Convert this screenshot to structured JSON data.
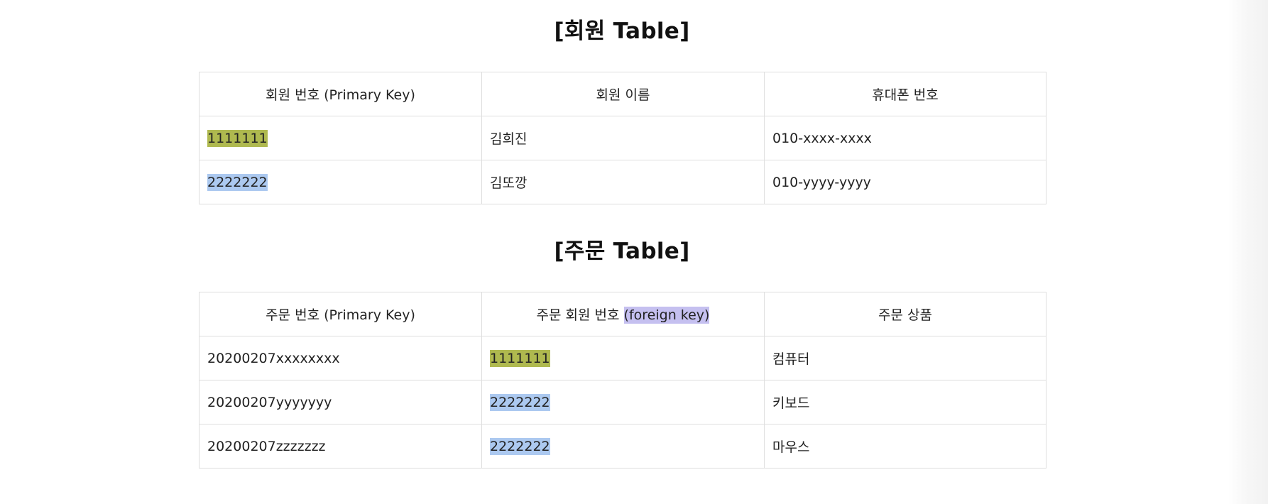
{
  "members_section": {
    "title": "[회원 Table]",
    "headers": [
      "회원 번호 (Primary Key)",
      "회원 이름",
      "휴대폰 번호"
    ],
    "rows": [
      {
        "member_id": "1111111",
        "member_id_highlight": "#afb94f",
        "name": "김희진",
        "phone": "010-xxxx-xxxx"
      },
      {
        "member_id": "2222222",
        "member_id_highlight": "#acc9f0",
        "name": "김또깡",
        "phone": "010-yyyy-yyyy"
      }
    ]
  },
  "orders_section": {
    "title": "[주문 Table]",
    "headers": {
      "order_id": "주문 번호 (Primary Key)",
      "member_ref_prefix": "주문 회원 번호 ",
      "member_ref_fk": "(foreign key)",
      "member_ref_fk_highlight": "#c5c0f0",
      "product": "주문 상품"
    },
    "rows": [
      {
        "order_id": "20200207xxxxxxxx",
        "member_id": "1111111",
        "member_id_highlight": "#afb94f",
        "product": "컴퓨터"
      },
      {
        "order_id": "20200207yyyyyyy",
        "member_id": "2222222",
        "member_id_highlight": "#acc9f0",
        "product": "키보드"
      },
      {
        "order_id": "20200207zzzzzzz",
        "member_id": "2222222",
        "member_id_highlight": "#acc9f0",
        "product": "마우스"
      }
    ]
  }
}
